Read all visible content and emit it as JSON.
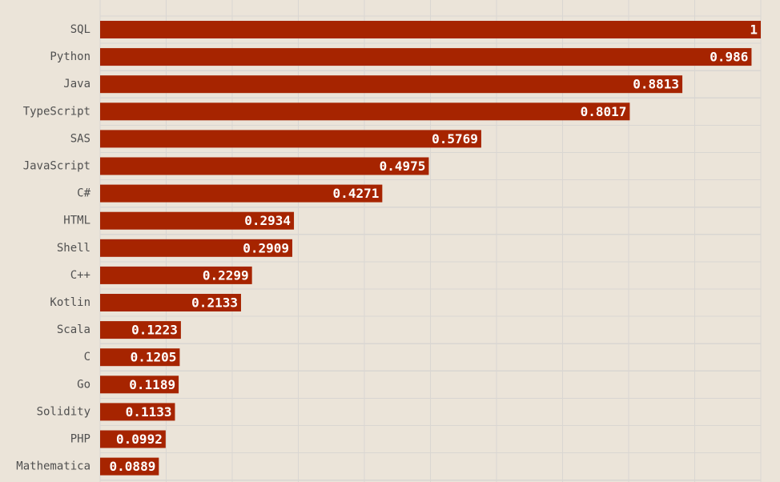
{
  "chart_data": {
    "type": "bar",
    "orientation": "horizontal",
    "title": "",
    "xlabel": "",
    "ylabel": "",
    "xlim": [
      0,
      1
    ],
    "grid": true,
    "legend": "none",
    "bar_color": "#a62400",
    "background_color": "#ebe4d9",
    "grid_color": "#d9d6d2",
    "categories": [
      "SQL",
      "Python",
      "Java",
      "TypeScript",
      "SAS",
      "JavaScript",
      "C#",
      "HTML",
      "Shell",
      "C++",
      "Kotlin",
      "Scala",
      "C",
      "Go",
      "Solidity",
      "PHP",
      "Mathematica"
    ],
    "values": [
      1,
      0.986,
      0.8813,
      0.8017,
      0.5769,
      0.4975,
      0.4271,
      0.2934,
      0.2909,
      0.2299,
      0.2133,
      0.1223,
      0.1205,
      0.1189,
      0.1133,
      0.0992,
      0.0889
    ],
    "value_labels": [
      "1",
      "0.986",
      "0.8813",
      "0.8017",
      "0.5769",
      "0.4975",
      "0.4271",
      "0.2934",
      "0.2909",
      "0.2299",
      "0.2133",
      "0.1223",
      "0.1205",
      "0.1189",
      "0.1133",
      "0.0992",
      "0.0889"
    ]
  }
}
